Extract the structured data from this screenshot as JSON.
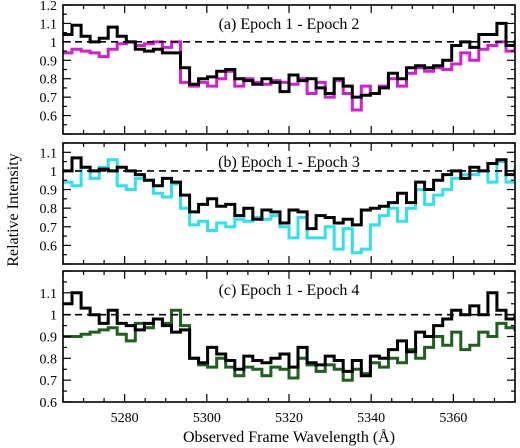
{
  "chart_data": {
    "type": "line",
    "step": true,
    "xlabel": "Observed Frame Wavelength (Å)",
    "ylabel": "Relative Intensity",
    "xlim": [
      5265,
      5375
    ],
    "xticks": [
      5280,
      5300,
      5320,
      5340,
      5360
    ],
    "x_start": 5265,
    "x_step": 2.2,
    "reference_line": 1.0,
    "panels": [
      {
        "title": "(a) Epoch 1 - Epoch 2",
        "ylim": [
          0.5,
          1.2
        ],
        "yticks": [
          0.6,
          0.7,
          0.8,
          0.9,
          1,
          1.1,
          1.2
        ],
        "series": [
          {
            "color": "#d21fd2",
            "values": [
              0.94,
              0.96,
              0.95,
              0.94,
              0.92,
              0.96,
              0.99,
              1.0,
              0.98,
              0.99,
              1.0,
              0.97,
              1.0,
              0.78,
              0.76,
              0.78,
              0.76,
              0.8,
              0.84,
              0.76,
              0.8,
              0.78,
              0.77,
              0.79,
              0.78,
              0.77,
              0.8,
              0.72,
              0.78,
              0.7,
              0.79,
              0.72,
              0.63,
              0.76,
              0.72,
              0.76,
              0.8,
              0.76,
              0.83,
              0.86,
              0.84,
              0.86,
              0.85,
              0.88,
              0.94,
              0.9,
              0.96,
              0.98,
              1.0,
              0.95,
              0.98,
              0.99,
              0.95
            ]
          },
          {
            "color": "#000000",
            "values": [
              1.04,
              1.09,
              1.03,
              1.0,
              1.02,
              1.08,
              1.03,
              1.0,
              0.96,
              0.95,
              0.96,
              0.94,
              0.94,
              0.86,
              0.77,
              0.8,
              0.81,
              0.84,
              0.85,
              0.8,
              0.79,
              0.77,
              0.8,
              0.78,
              0.73,
              0.82,
              0.79,
              0.8,
              0.75,
              0.72,
              0.8,
              0.76,
              0.7,
              0.71,
              0.72,
              0.75,
              0.83,
              0.8,
              0.86,
              0.87,
              0.86,
              0.87,
              0.9,
              0.98,
              1.0,
              0.97,
              1.04,
              1.04,
              1.1,
              0.98,
              1.0,
              1.02,
              0.98
            ]
          }
        ]
      },
      {
        "title": "(b) Epoch 1 - Epoch 3",
        "ylim": [
          0.5,
          1.15
        ],
        "yticks": [
          0.6,
          0.7,
          0.8,
          0.9,
          1,
          1.1
        ],
        "series": [
          {
            "color": "#2fe1ee",
            "values": [
              0.94,
              0.92,
              1.02,
              0.96,
              1.02,
              1.06,
              0.92,
              0.9,
              0.96,
              0.95,
              0.88,
              0.86,
              0.93,
              0.8,
              0.71,
              0.73,
              0.68,
              0.72,
              0.7,
              0.74,
              0.73,
              0.75,
              0.74,
              0.76,
              0.7,
              0.64,
              0.75,
              0.64,
              0.64,
              0.7,
              0.58,
              0.69,
              0.56,
              0.58,
              0.71,
              0.76,
              0.8,
              0.73,
              0.8,
              0.9,
              0.82,
              0.87,
              0.9,
              0.96,
              0.98,
              0.98,
              1.0,
              0.94,
              1.05,
              0.94,
              1.02,
              0.96,
              0.93
            ]
          },
          {
            "color": "#000000",
            "values": [
              1.0,
              1.07,
              1.02,
              1.0,
              1.01,
              1.0,
              1.02,
              1.0,
              0.98,
              0.95,
              0.92,
              0.96,
              0.94,
              0.87,
              0.78,
              0.82,
              0.85,
              0.81,
              0.82,
              0.76,
              0.8,
              0.74,
              0.79,
              0.78,
              0.72,
              0.79,
              0.78,
              0.69,
              0.76,
              0.75,
              0.72,
              0.74,
              0.71,
              0.79,
              0.8,
              0.81,
              0.83,
              0.88,
              0.83,
              0.94,
              0.9,
              0.95,
              0.98,
              1.0,
              0.96,
              1.02,
              1.0,
              1.04,
              1.06,
              0.98,
              1.0,
              1.02,
              0.98
            ]
          }
        ]
      },
      {
        "title": "(c) Epoch 1 - Epoch 4",
        "ylim": [
          0.6,
          1.2
        ],
        "yticks": [
          0.6,
          0.7,
          0.8,
          0.9,
          1,
          1.1
        ],
        "series": [
          {
            "color": "#1f5f1f",
            "values": [
              0.9,
              0.9,
              0.91,
              0.92,
              0.93,
              0.94,
              0.91,
              0.88,
              0.96,
              0.94,
              0.98,
              0.96,
              1.02,
              0.95,
              0.8,
              0.77,
              0.76,
              0.8,
              0.76,
              0.72,
              0.76,
              0.75,
              0.72,
              0.76,
              0.75,
              0.71,
              0.8,
              0.77,
              0.74,
              0.77,
              0.75,
              0.7,
              0.75,
              0.73,
              0.78,
              0.76,
              0.8,
              0.78,
              0.84,
              0.8,
              0.85,
              0.9,
              0.86,
              0.92,
              0.84,
              0.86,
              0.92,
              0.9,
              0.96,
              0.94,
              0.93,
              0.94,
              0.95
            ]
          },
          {
            "color": "#000000",
            "values": [
              1.05,
              1.1,
              1.03,
              1.0,
              0.96,
              1.02,
              0.96,
              0.95,
              0.93,
              0.96,
              0.98,
              0.95,
              0.92,
              0.93,
              0.8,
              0.78,
              0.85,
              0.82,
              0.79,
              0.75,
              0.81,
              0.79,
              0.78,
              0.8,
              0.82,
              0.76,
              0.85,
              0.78,
              0.77,
              0.81,
              0.79,
              0.74,
              0.79,
              0.72,
              0.81,
              0.8,
              0.84,
              0.88,
              0.83,
              0.92,
              0.9,
              0.95,
              0.98,
              1.02,
              1.0,
              1.04,
              1.0,
              1.1,
              1.02,
              0.98,
              1.0,
              0.97,
              0.98
            ]
          }
        ]
      }
    ]
  }
}
